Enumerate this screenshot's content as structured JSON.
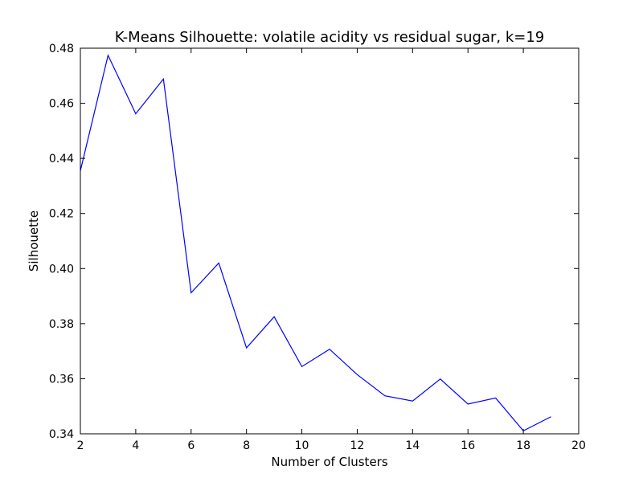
{
  "chart_data": {
    "type": "line",
    "title": "K-Means Silhouette: volatile acidity vs residual sugar, k=19",
    "xlabel": "Number of Clusters",
    "ylabel": "Silhouette",
    "xlim": [
      2,
      20
    ],
    "ylim": [
      0.34,
      0.48
    ],
    "xticks": [
      2,
      4,
      6,
      8,
      10,
      12,
      14,
      16,
      18,
      20
    ],
    "yticks": [
      0.34,
      0.36,
      0.38,
      0.4,
      0.42,
      0.44,
      0.46,
      0.48
    ],
    "xtick_labels": [
      "2",
      "4",
      "6",
      "8",
      "10",
      "12",
      "14",
      "16",
      "18",
      "20"
    ],
    "ytick_labels": [
      "0.34",
      "0.36",
      "0.38",
      "0.40",
      "0.42",
      "0.44",
      "0.46",
      "0.48"
    ],
    "grid": false,
    "legend": "none",
    "line_color": "#0000ff",
    "series": [
      {
        "x": [
          2,
          3,
          4,
          5,
          6,
          7,
          8,
          9,
          10,
          11,
          12,
          13,
          14,
          15,
          16,
          17,
          18,
          19
        ],
        "values": [
          0.4355,
          0.4774,
          0.4562,
          0.4688,
          0.3912,
          0.402,
          0.3712,
          0.3825,
          0.3644,
          0.3707,
          0.3615,
          0.3538,
          0.3519,
          0.3599,
          0.3508,
          0.353,
          0.3411,
          0.3462
        ]
      }
    ]
  }
}
